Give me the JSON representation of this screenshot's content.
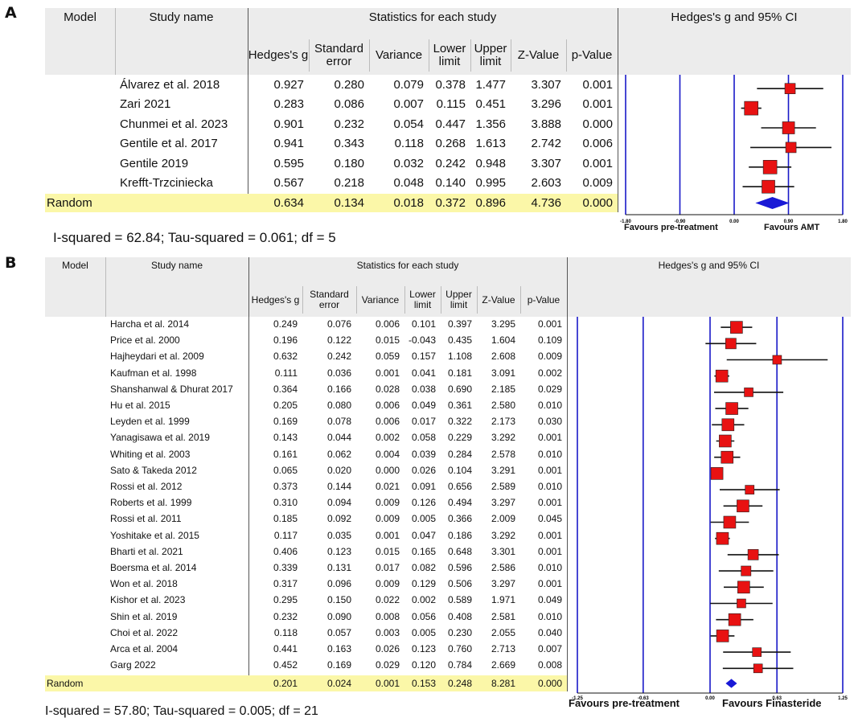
{
  "colors": {
    "header_bg": "#ececec",
    "random_bg": "#fbf7a8",
    "marker": "#e81212",
    "diamond": "#1919d6",
    "ref_line": "#1919c8"
  },
  "panel_a": {
    "label": "A",
    "headers": {
      "model": "Model",
      "study_name": "Study name",
      "stats_group": "Statistics for each study",
      "forest_group": "Hedges's g and 95% CI",
      "cols": [
        "Hedges's g",
        "Standard error",
        "Variance",
        "Lower limit",
        "Upper limit",
        "Z-Value",
        "p-Value"
      ]
    },
    "model_label": "Random",
    "footer": "I-squared = 62.84; Tau-squared = 0.061; df = 5",
    "favours_left": "Favours pre-treatment",
    "favours_right": "Favours AMT"
  },
  "panel_b": {
    "label": "B",
    "headers": {
      "model": "Model",
      "study_name": "Study name",
      "stats_group": "Statistics for each study",
      "forest_group": "Hedges's g and 95% CI",
      "cols": [
        "Hedges's g",
        "Standard error",
        "Variance",
        "Lower limit",
        "Upper limit",
        "Z-Value",
        "p-Value"
      ]
    },
    "model_label": "Random",
    "footer": "I-squared = 57.80; Tau-squared = 0.005; df = 21",
    "favours_left": "Favours pre-treatment",
    "favours_right": "Favours Finasteride"
  },
  "chart_data": [
    {
      "type": "table",
      "xlim": [
        -1.8,
        1.8
      ],
      "ticks": [
        "-1.80",
        "-0.90",
        "0.00",
        "0.90",
        "1.80"
      ],
      "tick_values": [
        -1.8,
        -0.9,
        0,
        0.9,
        1.8
      ],
      "studies": [
        {
          "name": "Álvarez et al. 2018",
          "g": "0.927",
          "se": "0.280",
          "var": "0.079",
          "lo": "0.378",
          "hi": "1.477",
          "z": "3.307",
          "p": "0.001"
        },
        {
          "name": "Zari 2021",
          "g": "0.283",
          "se": "0.086",
          "var": "0.007",
          "lo": "0.115",
          "hi": "0.451",
          "z": "3.296",
          "p": "0.001"
        },
        {
          "name": "Chunmei et al. 2023",
          "g": "0.901",
          "se": "0.232",
          "var": "0.054",
          "lo": "0.447",
          "hi": "1.356",
          "z": "3.888",
          "p": "0.000"
        },
        {
          "name": "Gentile et al. 2017",
          "g": "0.941",
          "se": "0.343",
          "var": "0.118",
          "lo": "0.268",
          "hi": "1.613",
          "z": "2.742",
          "p": "0.006"
        },
        {
          "name": "Gentile 2019",
          "g": "0.595",
          "se": "0.180",
          "var": "0.032",
          "lo": "0.242",
          "hi": "0.948",
          "z": "3.307",
          "p": "0.001"
        },
        {
          "name": "Krefft-Trzciniecka",
          "g": "0.567",
          "se": "0.218",
          "var": "0.048",
          "lo": "0.140",
          "hi": "0.995",
          "z": "2.603",
          "p": "0.009"
        }
      ],
      "summary": {
        "g": "0.634",
        "se": "0.134",
        "var": "0.018",
        "lo": "0.372",
        "hi": "0.896",
        "z": "4.736",
        "p": "0.000"
      }
    },
    {
      "type": "table",
      "xlim": [
        -1.25,
        1.25
      ],
      "ticks": [
        "-1.25",
        "-0.63",
        "0.00",
        "0.63",
        "1.25"
      ],
      "tick_values": [
        -1.25,
        -0.63,
        0,
        0.63,
        1.25
      ],
      "studies": [
        {
          "name": "Harcha et al. 2014",
          "g": "0.249",
          "se": "0.076",
          "var": "0.006",
          "lo": "0.101",
          "hi": "0.397",
          "z": "3.295",
          "p": "0.001"
        },
        {
          "name": "Price et al. 2000",
          "g": "0.196",
          "se": "0.122",
          "var": "0.015",
          "lo": "-0.043",
          "hi": "0.435",
          "z": "1.604",
          "p": "0.109"
        },
        {
          "name": "Hajheydari et al. 2009",
          "g": "0.632",
          "se": "0.242",
          "var": "0.059",
          "lo": "0.157",
          "hi": "1.108",
          "z": "2.608",
          "p": "0.009"
        },
        {
          "name": "Kaufman et al. 1998",
          "g": "0.111",
          "se": "0.036",
          "var": "0.001",
          "lo": "0.041",
          "hi": "0.181",
          "z": "3.091",
          "p": "0.002"
        },
        {
          "name": "Shanshanwal & Dhurat 2017",
          "g": "0.364",
          "se": "0.166",
          "var": "0.028",
          "lo": "0.038",
          "hi": "0.690",
          "z": "2.185",
          "p": "0.029"
        },
        {
          "name": "Hu et al. 2015",
          "g": "0.205",
          "se": "0.080",
          "var": "0.006",
          "lo": "0.049",
          "hi": "0.361",
          "z": "2.580",
          "p": "0.010"
        },
        {
          "name": "Leyden et al. 1999",
          "g": "0.169",
          "se": "0.078",
          "var": "0.006",
          "lo": "0.017",
          "hi": "0.322",
          "z": "2.173",
          "p": "0.030"
        },
        {
          "name": "Yanagisawa et al. 2019",
          "g": "0.143",
          "se": "0.044",
          "var": "0.002",
          "lo": "0.058",
          "hi": "0.229",
          "z": "3.292",
          "p": "0.001"
        },
        {
          "name": "Whiting et al. 2003",
          "g": "0.161",
          "se": "0.062",
          "var": "0.004",
          "lo": "0.039",
          "hi": "0.284",
          "z": "2.578",
          "p": "0.010"
        },
        {
          "name": "Sato & Takeda 2012",
          "g": "0.065",
          "se": "0.020",
          "var": "0.000",
          "lo": "0.026",
          "hi": "0.104",
          "z": "3.291",
          "p": "0.001"
        },
        {
          "name": "Rossi et al. 2012",
          "g": "0.373",
          "se": "0.144",
          "var": "0.021",
          "lo": "0.091",
          "hi": "0.656",
          "z": "2.589",
          "p": "0.010"
        },
        {
          "name": "Roberts et al. 1999",
          "g": "0.310",
          "se": "0.094",
          "var": "0.009",
          "lo": "0.126",
          "hi": "0.494",
          "z": "3.297",
          "p": "0.001"
        },
        {
          "name": "Rossi et al. 2011",
          "g": "0.185",
          "se": "0.092",
          "var": "0.009",
          "lo": "0.005",
          "hi": "0.366",
          "z": "2.009",
          "p": "0.045"
        },
        {
          "name": "Yoshitake et al. 2015",
          "g": "0.117",
          "se": "0.035",
          "var": "0.001",
          "lo": "0.047",
          "hi": "0.186",
          "z": "3.292",
          "p": "0.001"
        },
        {
          "name": "Bharti et al. 2021",
          "g": "0.406",
          "se": "0.123",
          "var": "0.015",
          "lo": "0.165",
          "hi": "0.648",
          "z": "3.301",
          "p": "0.001"
        },
        {
          "name": "Boersma et al. 2014",
          "g": "0.339",
          "se": "0.131",
          "var": "0.017",
          "lo": "0.082",
          "hi": "0.596",
          "z": "2.586",
          "p": "0.010"
        },
        {
          "name": "Won et al. 2018",
          "g": "0.317",
          "se": "0.096",
          "var": "0.009",
          "lo": "0.129",
          "hi": "0.506",
          "z": "3.297",
          "p": "0.001"
        },
        {
          "name": "Kishor et al. 2023",
          "g": "0.295",
          "se": "0.150",
          "var": "0.022",
          "lo": "0.002",
          "hi": "0.589",
          "z": "1.971",
          "p": "0.049"
        },
        {
          "name": "Shin et al. 2019",
          "g": "0.232",
          "se": "0.090",
          "var": "0.008",
          "lo": "0.056",
          "hi": "0.408",
          "z": "2.581",
          "p": "0.010"
        },
        {
          "name": "Choi et al. 2022",
          "g": "0.118",
          "se": "0.057",
          "var": "0.003",
          "lo": "0.005",
          "hi": "0.230",
          "z": "2.055",
          "p": "0.040"
        },
        {
          "name": "Arca et al. 2004",
          "g": "0.441",
          "se": "0.163",
          "var": "0.026",
          "lo": "0.123",
          "hi": "0.760",
          "z": "2.713",
          "p": "0.007"
        },
        {
          "name": "Garg 2022",
          "g": "0.452",
          "se": "0.169",
          "var": "0.029",
          "lo": "0.120",
          "hi": "0.784",
          "z": "2.669",
          "p": "0.008"
        }
      ],
      "summary": {
        "g": "0.201",
        "se": "0.024",
        "var": "0.001",
        "lo": "0.153",
        "hi": "0.248",
        "z": "8.281",
        "p": "0.000"
      }
    }
  ]
}
